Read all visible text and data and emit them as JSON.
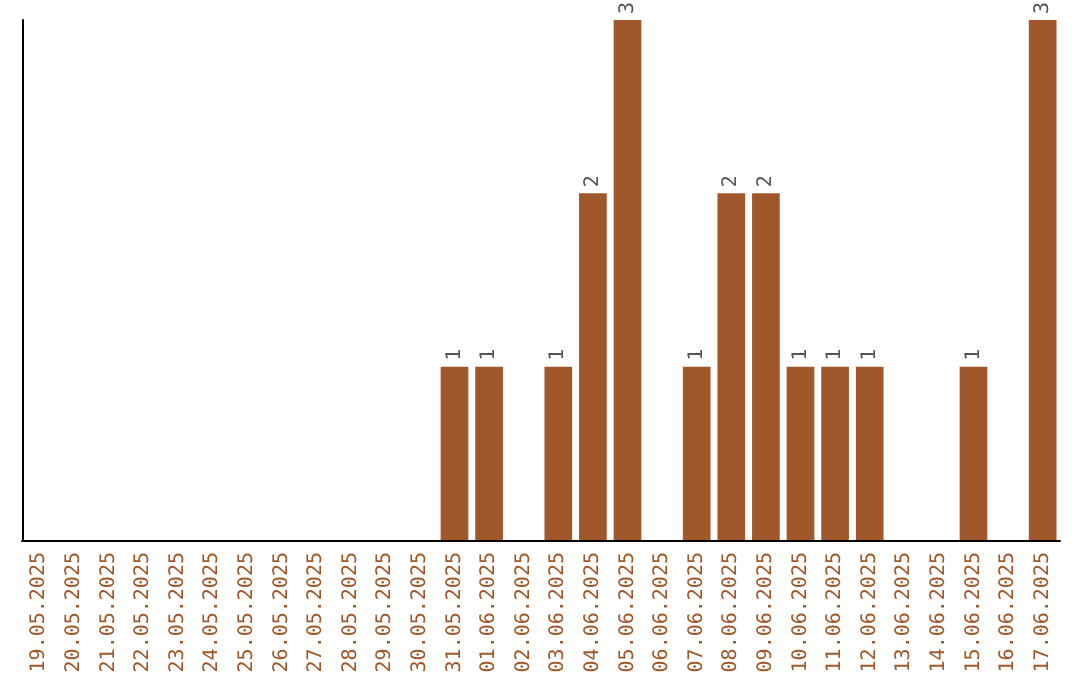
{
  "chart_data": {
    "type": "bar",
    "categories": [
      "19.05.2025",
      "20.05.2025",
      "21.05.2025",
      "22.05.2025",
      "23.05.2025",
      "24.05.2025",
      "25.05.2025",
      "26.05.2025",
      "27.05.2025",
      "28.05.2025",
      "29.05.2025",
      "30.05.2025",
      "31.05.2025",
      "01.06.2025",
      "02.06.2025",
      "03.06.2025",
      "04.06.2025",
      "05.06.2025",
      "06.06.2025",
      "07.06.2025",
      "08.06.2025",
      "09.06.2025",
      "10.06.2025",
      "11.06.2025",
      "12.06.2025",
      "13.06.2025",
      "14.06.2025",
      "15.06.2025",
      "16.06.2025",
      "17.06.2025"
    ],
    "values": [
      null,
      null,
      null,
      null,
      null,
      null,
      null,
      null,
      null,
      null,
      null,
      null,
      1,
      1,
      null,
      1,
      2,
      3,
      null,
      1,
      2,
      2,
      1,
      1,
      1,
      null,
      null,
      1,
      null,
      3
    ],
    "data_labels": true,
    "color": "#a0582a",
    "ylim": [
      0,
      3
    ],
    "tick_labels": "x",
    "grid": false
  }
}
